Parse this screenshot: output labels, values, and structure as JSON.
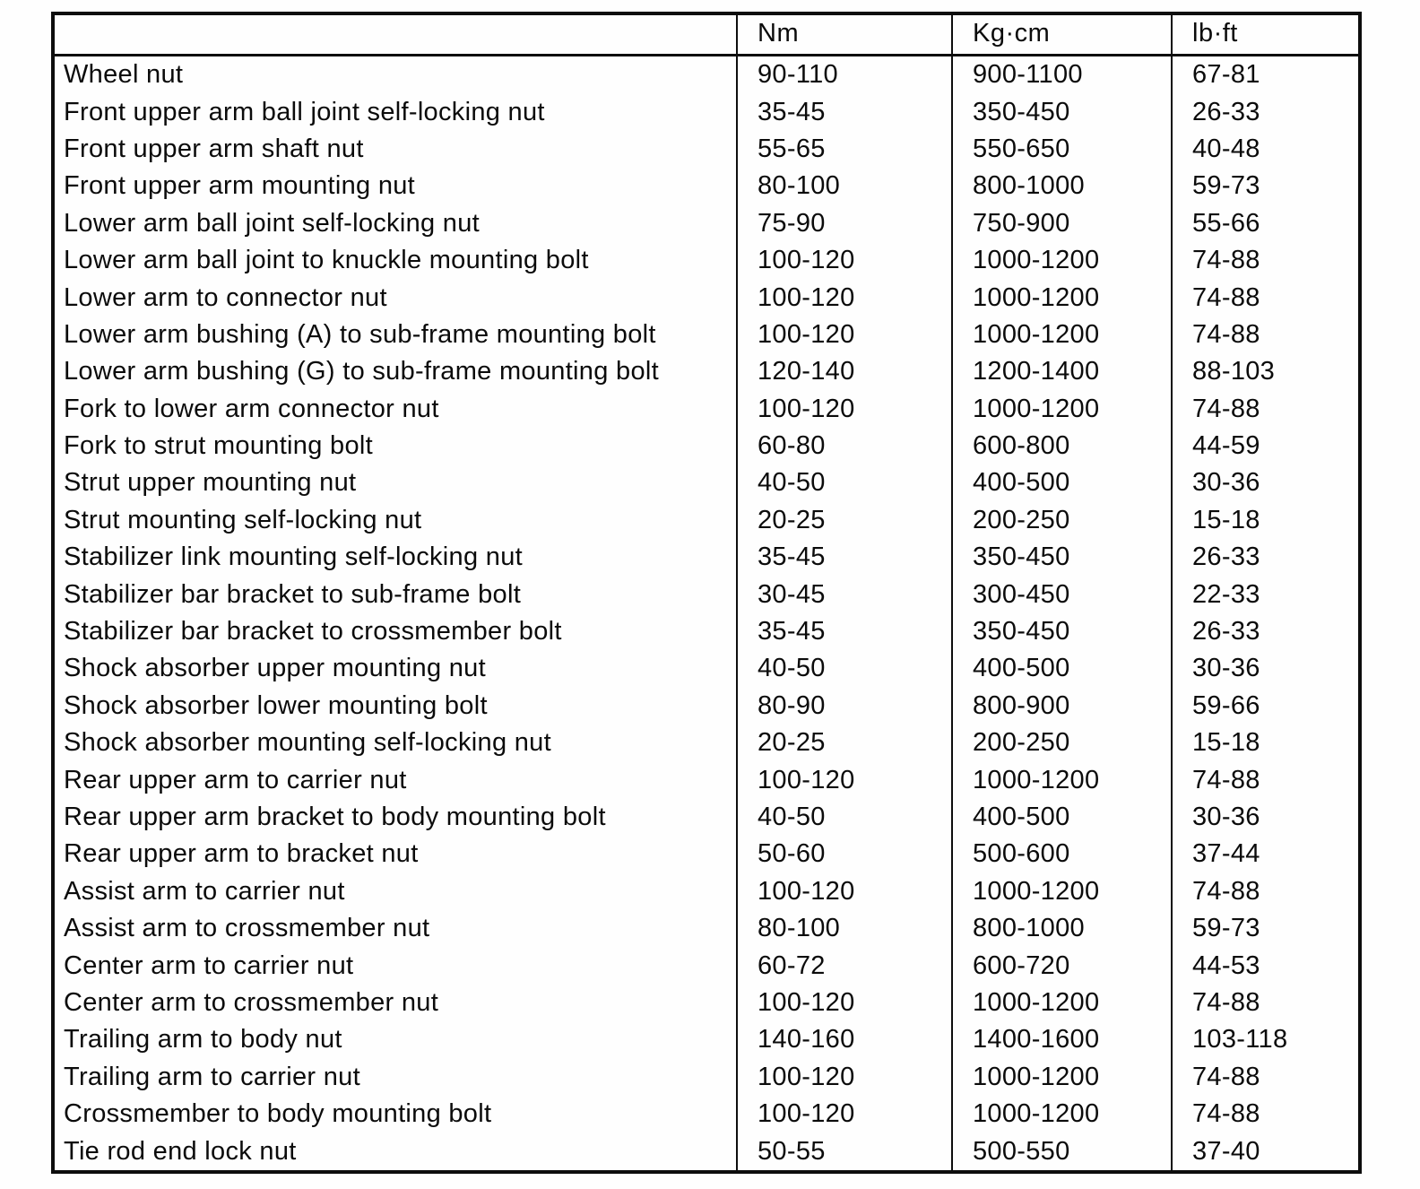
{
  "table": {
    "columns": [
      "Nm",
      "Kg·cm",
      "lb·ft"
    ],
    "rows": [
      {
        "name": "Wheel nut",
        "nm": "90-110",
        "kgcm": "900-1100",
        "lbft": "67-81"
      },
      {
        "name": "Front upper arm ball joint self-locking nut",
        "nm": "35-45",
        "kgcm": "350-450",
        "lbft": "26-33"
      },
      {
        "name": "Front upper arm shaft nut",
        "nm": "55-65",
        "kgcm": "550-650",
        "lbft": "40-48"
      },
      {
        "name": "Front upper arm mounting nut",
        "nm": "80-100",
        "kgcm": "800-1000",
        "lbft": "59-73"
      },
      {
        "name": "Lower arm ball joint self-locking nut",
        "nm": "75-90",
        "kgcm": "750-900",
        "lbft": "55-66"
      },
      {
        "name": "Lower arm ball joint to knuckle mounting bolt",
        "nm": "100-120",
        "kgcm": "1000-1200",
        "lbft": "74-88"
      },
      {
        "name": "Lower arm to connector nut",
        "nm": "100-120",
        "kgcm": "1000-1200",
        "lbft": "74-88"
      },
      {
        "name": "Lower arm bushing (A) to sub-frame mounting bolt",
        "nm": "100-120",
        "kgcm": "1000-1200",
        "lbft": "74-88"
      },
      {
        "name": "Lower arm bushing (G) to sub-frame mounting bolt",
        "nm": "120-140",
        "kgcm": "1200-1400",
        "lbft": "88-103"
      },
      {
        "name": "Fork to lower arm connector nut",
        "nm": "100-120",
        "kgcm": "1000-1200",
        "lbft": "74-88"
      },
      {
        "name": "Fork to strut mounting bolt",
        "nm": "60-80",
        "kgcm": "600-800",
        "lbft": "44-59"
      },
      {
        "name": "Strut upper mounting nut",
        "nm": "40-50",
        "kgcm": "400-500",
        "lbft": "30-36"
      },
      {
        "name": "Strut mounting self-locking nut",
        "nm": "20-25",
        "kgcm": "200-250",
        "lbft": "15-18"
      },
      {
        "name": "Stabilizer link mounting self-locking nut",
        "nm": "35-45",
        "kgcm": "350-450",
        "lbft": "26-33"
      },
      {
        "name": "Stabilizer bar bracket to sub-frame bolt",
        "nm": "30-45",
        "kgcm": "300-450",
        "lbft": "22-33"
      },
      {
        "name": "Stabilizer bar bracket to crossmember bolt",
        "nm": "35-45",
        "kgcm": "350-450",
        "lbft": "26-33"
      },
      {
        "name": "Shock absorber upper mounting nut",
        "nm": "40-50",
        "kgcm": "400-500",
        "lbft": "30-36"
      },
      {
        "name": "Shock absorber lower mounting bolt",
        "nm": "80-90",
        "kgcm": "800-900",
        "lbft": "59-66"
      },
      {
        "name": "Shock absorber mounting self-locking nut",
        "nm": "20-25",
        "kgcm": "200-250",
        "lbft": "15-18"
      },
      {
        "name": "Rear upper arm to carrier nut",
        "nm": "100-120",
        "kgcm": "1000-1200",
        "lbft": "74-88"
      },
      {
        "name": "Rear upper arm bracket to body mounting bolt",
        "nm": "40-50",
        "kgcm": "400-500",
        "lbft": "30-36"
      },
      {
        "name": "Rear upper arm to bracket nut",
        "nm": "50-60",
        "kgcm": "500-600",
        "lbft": "37-44"
      },
      {
        "name": "Assist arm to carrier nut",
        "nm": "100-120",
        "kgcm": "1000-1200",
        "lbft": "74-88"
      },
      {
        "name": "Assist arm to crossmember nut",
        "nm": "80-100",
        "kgcm": "800-1000",
        "lbft": "59-73"
      },
      {
        "name": "Center arm to carrier nut",
        "nm": "60-72",
        "kgcm": "600-720",
        "lbft": "44-53"
      },
      {
        "name": "Center arm to crossmember nut",
        "nm": "100-120",
        "kgcm": "1000-1200",
        "lbft": "74-88"
      },
      {
        "name": "Trailing arm to body nut",
        "nm": "140-160",
        "kgcm": "1400-1600",
        "lbft": "103-118"
      },
      {
        "name": "Trailing arm to carrier nut",
        "nm": "100-120",
        "kgcm": "1000-1200",
        "lbft": "74-88"
      },
      {
        "name": "Crossmember to body mounting bolt",
        "nm": "100-120",
        "kgcm": "1000-1200",
        "lbft": "74-88"
      },
      {
        "name": "Tie rod end lock nut",
        "nm": "50-55",
        "kgcm": "500-550",
        "lbft": "37-40"
      }
    ]
  }
}
